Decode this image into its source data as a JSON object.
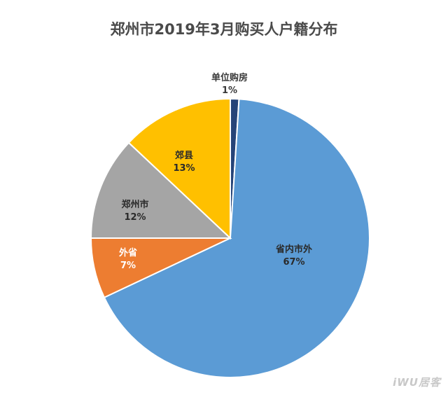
{
  "chart_data": {
    "type": "pie",
    "title": "郑州市2019年3月购买人户籍分布",
    "slices": [
      {
        "label": "单位购房",
        "percent_label": "1%",
        "value": 1,
        "color": "#264478",
        "label_color": "#3a3a3a"
      },
      {
        "label": "省内市外",
        "percent_label": "67%",
        "value": 67,
        "color": "#5b9bd5",
        "label_color": "#2a2a2a"
      },
      {
        "label": "外省",
        "percent_label": "7%",
        "value": 7,
        "color": "#ed7d31",
        "label_color": "#ffffff"
      },
      {
        "label": "郑州市",
        "percent_label": "12%",
        "value": 12,
        "color": "#a5a5a5",
        "label_color": "#2a2a2a"
      },
      {
        "label": "郊县",
        "percent_label": "13%",
        "value": 13,
        "color": "#ffc000",
        "label_color": "#2a2a2a"
      }
    ]
  },
  "watermark": "iWU居客"
}
